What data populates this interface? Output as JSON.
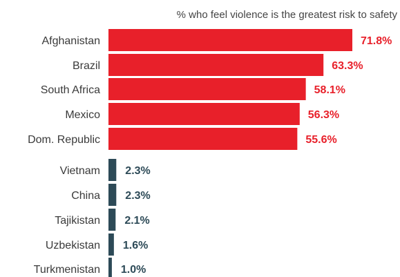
{
  "chart_data": {
    "type": "bar",
    "orientation": "horizontal",
    "title": "% who feel violence is the greatest risk to safety",
    "categories": [
      "Afghanistan",
      "Brazil",
      "South Africa",
      "Mexico",
      "Dom. Republic",
      "Vietnam",
      "China",
      "Tajikistan",
      "Uzbekistan",
      "Turkmenistan"
    ],
    "values": [
      71.8,
      63.3,
      58.1,
      56.3,
      55.6,
      2.3,
      2.3,
      2.1,
      1.6,
      1.0
    ],
    "value_labels": [
      "71.8%",
      "63.3%",
      "58.1%",
      "56.3%",
      "55.6%",
      "2.3%",
      "2.3%",
      "2.1%",
      "1.6%",
      "1.0%"
    ],
    "groups": [
      {
        "name": "top",
        "color": "#e8202a",
        "indices": [
          0,
          1,
          2,
          3,
          4
        ]
      },
      {
        "name": "bottom",
        "color": "#2d4a57",
        "indices": [
          5,
          6,
          7,
          8,
          9
        ]
      }
    ],
    "xlim": [
      0,
      71.8
    ],
    "grid": false,
    "legend": "none"
  }
}
